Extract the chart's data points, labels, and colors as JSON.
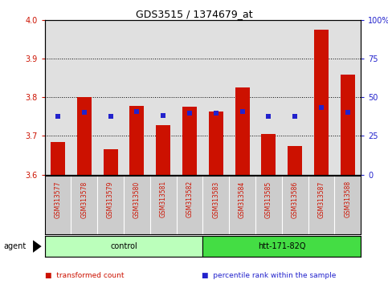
{
  "title": "GDS3515 / 1374679_at",
  "samples": [
    "GSM313577",
    "GSM313578",
    "GSM313579",
    "GSM313580",
    "GSM313581",
    "GSM313582",
    "GSM313583",
    "GSM313584",
    "GSM313585",
    "GSM313586",
    "GSM313587",
    "GSM313588"
  ],
  "transformed_count": [
    3.685,
    3.8,
    3.665,
    3.778,
    3.728,
    3.775,
    3.763,
    3.825,
    3.705,
    3.675,
    3.975,
    3.858
  ],
  "percentile_rank_vals": [
    3.75,
    3.762,
    3.75,
    3.763,
    3.752,
    3.76,
    3.76,
    3.763,
    3.75,
    3.75,
    3.773,
    3.762
  ],
  "ymin": 3.6,
  "ymax": 4.0,
  "yticks": [
    3.6,
    3.7,
    3.8,
    3.9,
    4.0
  ],
  "right_yticks_vals": [
    0,
    25,
    50,
    75,
    100
  ],
  "right_ytick_positions": [
    3.6,
    3.7,
    3.8,
    3.9,
    4.0
  ],
  "groups": [
    {
      "label": "control",
      "start": 0,
      "end": 5,
      "color": "#BBFFBB"
    },
    {
      "label": "htt-171-82Q",
      "start": 6,
      "end": 11,
      "color": "#44DD44"
    }
  ],
  "bar_color": "#CC1100",
  "dot_color": "#2222CC",
  "bar_width": 0.55,
  "background_color": "#FFFFFF",
  "axis_color_left": "#CC1100",
  "axis_color_right": "#2222CC",
  "grid_color": "#000000",
  "sample_bg_color": "#CCCCCC",
  "sample_label_color": "#CC1100",
  "legend_items": [
    {
      "color": "#CC1100",
      "label": "transformed count"
    },
    {
      "color": "#2222CC",
      "label": "percentile rank within the sample"
    }
  ],
  "title_fontsize": 9,
  "tick_fontsize": 7,
  "sample_fontsize": 5.5,
  "group_fontsize": 7,
  "legend_fontsize": 6.5,
  "agent_fontsize": 7
}
